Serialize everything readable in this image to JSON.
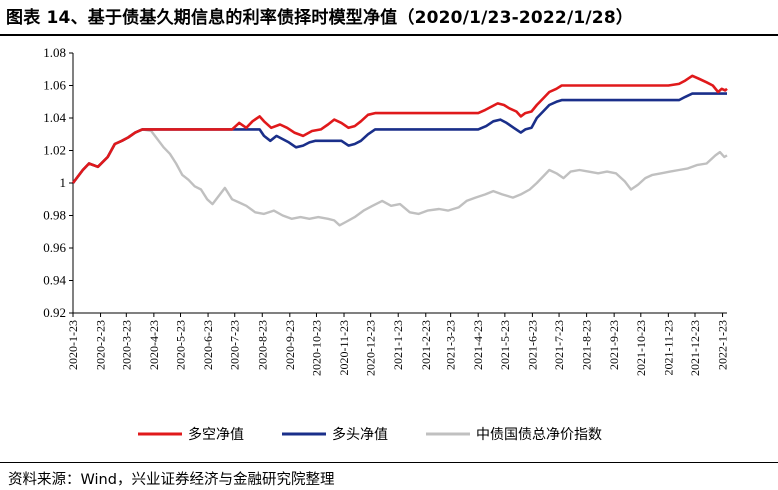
{
  "header": {
    "title": "图表 14、基于债基久期信息的利率债择时模型净值（2020/1/23-2022/1/28）"
  },
  "footer": {
    "source": "资料来源：Wind，兴业证券经济与金融研究院整理"
  },
  "chart_data": {
    "type": "line",
    "title": "图表 14、基于债基久期信息的利率债择时模型净值（2020/1/23-2022/1/28）",
    "ylim": [
      0.92,
      1.08
    ],
    "yticks": [
      "0.92",
      "0.94",
      "0.96",
      "0.98",
      "1",
      "1.02",
      "1.04",
      "1.06",
      "1.08"
    ],
    "xlim": [
      "2020-01-23",
      "2022-01-28"
    ],
    "xticks": [
      "2020-1-23",
      "2020-2-23",
      "2020-3-23",
      "2020-4-23",
      "2020-5-23",
      "2020-6-23",
      "2020-7-23",
      "2020-8-23",
      "2020-9-23",
      "2020-10-23",
      "2020-11-23",
      "2020-12-23",
      "2021-1-23",
      "2021-2-23",
      "2021-3-23",
      "2021-4-23",
      "2021-5-23",
      "2021-6-23",
      "2021-7-23",
      "2021-8-23",
      "2021-9-23",
      "2021-10-23",
      "2021-11-23",
      "2021-12-23",
      "2022-1-23"
    ],
    "legend_position": "bottom",
    "grid": false,
    "series": [
      {
        "name": "多空净值",
        "color": "#e0191b",
        "points": [
          [
            "2020-01-23",
            1.0
          ],
          [
            "2020-02-03",
            1.008
          ],
          [
            "2020-02-10",
            1.012
          ],
          [
            "2020-02-20",
            1.01
          ],
          [
            "2020-03-02",
            1.016
          ],
          [
            "2020-03-10",
            1.024
          ],
          [
            "2020-03-18",
            1.026
          ],
          [
            "2020-03-25",
            1.028
          ],
          [
            "2020-04-02",
            1.031
          ],
          [
            "2020-04-10",
            1.033
          ],
          [
            "2020-04-20",
            1.033
          ],
          [
            "2020-05-20",
            1.033
          ],
          [
            "2020-06-20",
            1.033
          ],
          [
            "2020-07-20",
            1.033
          ],
          [
            "2020-07-28",
            1.037
          ],
          [
            "2020-08-05",
            1.034
          ],
          [
            "2020-08-12",
            1.038
          ],
          [
            "2020-08-20",
            1.041
          ],
          [
            "2020-08-25",
            1.038
          ],
          [
            "2020-09-02",
            1.034
          ],
          [
            "2020-09-12",
            1.036
          ],
          [
            "2020-09-20",
            1.034
          ],
          [
            "2020-09-28",
            1.031
          ],
          [
            "2020-10-08",
            1.029
          ],
          [
            "2020-10-18",
            1.032
          ],
          [
            "2020-10-28",
            1.033
          ],
          [
            "2020-11-05",
            1.036
          ],
          [
            "2020-11-12",
            1.039
          ],
          [
            "2020-11-20",
            1.037
          ],
          [
            "2020-11-28",
            1.034
          ],
          [
            "2020-12-05",
            1.035
          ],
          [
            "2020-12-12",
            1.038
          ],
          [
            "2020-12-20",
            1.042
          ],
          [
            "2020-12-28",
            1.043
          ],
          [
            "2021-02-23",
            1.043
          ],
          [
            "2021-04-23",
            1.043
          ],
          [
            "2021-05-01",
            1.045
          ],
          [
            "2021-05-08",
            1.047
          ],
          [
            "2021-05-15",
            1.049
          ],
          [
            "2021-05-22",
            1.048
          ],
          [
            "2021-05-28",
            1.046
          ],
          [
            "2021-06-05",
            1.044
          ],
          [
            "2021-06-10",
            1.041
          ],
          [
            "2021-06-15",
            1.043
          ],
          [
            "2021-06-22",
            1.044
          ],
          [
            "2021-06-28",
            1.048
          ],
          [
            "2021-07-05",
            1.052
          ],
          [
            "2021-07-12",
            1.056
          ],
          [
            "2021-07-20",
            1.058
          ],
          [
            "2021-07-26",
            1.06
          ],
          [
            "2021-09-23",
            1.06
          ],
          [
            "2021-11-23",
            1.06
          ],
          [
            "2021-12-05",
            1.061
          ],
          [
            "2021-12-12",
            1.063
          ],
          [
            "2021-12-20",
            1.066
          ],
          [
            "2021-12-28",
            1.064
          ],
          [
            "2022-01-05",
            1.062
          ],
          [
            "2022-01-12",
            1.06
          ],
          [
            "2022-01-18",
            1.056
          ],
          [
            "2022-01-22",
            1.058
          ],
          [
            "2022-01-26",
            1.057
          ],
          [
            "2022-01-28",
            1.058
          ]
        ]
      },
      {
        "name": "多头净值",
        "color": "#1a2f8a",
        "points": [
          [
            "2020-01-23",
            1.0
          ],
          [
            "2020-02-03",
            1.008
          ],
          [
            "2020-02-10",
            1.012
          ],
          [
            "2020-02-20",
            1.01
          ],
          [
            "2020-03-02",
            1.016
          ],
          [
            "2020-03-10",
            1.024
          ],
          [
            "2020-03-18",
            1.026
          ],
          [
            "2020-03-25",
            1.028
          ],
          [
            "2020-04-02",
            1.031
          ],
          [
            "2020-04-10",
            1.033
          ],
          [
            "2020-04-20",
            1.033
          ],
          [
            "2020-05-20",
            1.033
          ],
          [
            "2020-06-20",
            1.033
          ],
          [
            "2020-07-20",
            1.033
          ],
          [
            "2020-08-20",
            1.033
          ],
          [
            "2020-08-25",
            1.029
          ],
          [
            "2020-09-01",
            1.026
          ],
          [
            "2020-09-08",
            1.029
          ],
          [
            "2020-09-15",
            1.027
          ],
          [
            "2020-09-22",
            1.025
          ],
          [
            "2020-09-30",
            1.022
          ],
          [
            "2020-10-08",
            1.023
          ],
          [
            "2020-10-15",
            1.025
          ],
          [
            "2020-10-22",
            1.026
          ],
          [
            "2020-11-05",
            1.026
          ],
          [
            "2020-11-20",
            1.026
          ],
          [
            "2020-11-28",
            1.023
          ],
          [
            "2020-12-05",
            1.024
          ],
          [
            "2020-12-12",
            1.026
          ],
          [
            "2020-12-20",
            1.03
          ],
          [
            "2020-12-28",
            1.033
          ],
          [
            "2021-02-23",
            1.033
          ],
          [
            "2021-04-23",
            1.033
          ],
          [
            "2021-05-02",
            1.035
          ],
          [
            "2021-05-10",
            1.038
          ],
          [
            "2021-05-18",
            1.039
          ],
          [
            "2021-05-25",
            1.037
          ],
          [
            "2021-06-02",
            1.034
          ],
          [
            "2021-06-10",
            1.031
          ],
          [
            "2021-06-15",
            1.033
          ],
          [
            "2021-06-22",
            1.034
          ],
          [
            "2021-06-28",
            1.04
          ],
          [
            "2021-07-05",
            1.044
          ],
          [
            "2021-07-12",
            1.048
          ],
          [
            "2021-07-20",
            1.05
          ],
          [
            "2021-07-26",
            1.051
          ],
          [
            "2021-09-23",
            1.051
          ],
          [
            "2021-11-23",
            1.051
          ],
          [
            "2021-12-05",
            1.051
          ],
          [
            "2021-12-12",
            1.053
          ],
          [
            "2021-12-20",
            1.055
          ],
          [
            "2022-01-05",
            1.055
          ],
          [
            "2022-01-28",
            1.055
          ]
        ]
      },
      {
        "name": "中债国债总净价指数",
        "color": "#c0c0c0",
        "points": [
          [
            "2020-01-23",
            1.0
          ],
          [
            "2020-02-03",
            1.008
          ],
          [
            "2020-02-10",
            1.012
          ],
          [
            "2020-02-20",
            1.01
          ],
          [
            "2020-03-02",
            1.016
          ],
          [
            "2020-03-10",
            1.024
          ],
          [
            "2020-03-18",
            1.026
          ],
          [
            "2020-03-25",
            1.028
          ],
          [
            "2020-04-02",
            1.031
          ],
          [
            "2020-04-10",
            1.033
          ],
          [
            "2020-04-20",
            1.032
          ],
          [
            "2020-04-27",
            1.027
          ],
          [
            "2020-05-04",
            1.022
          ],
          [
            "2020-05-11",
            1.018
          ],
          [
            "2020-05-18",
            1.012
          ],
          [
            "2020-05-25",
            1.005
          ],
          [
            "2020-06-01",
            1.002
          ],
          [
            "2020-06-08",
            0.998
          ],
          [
            "2020-06-15",
            0.996
          ],
          [
            "2020-06-22",
            0.99
          ],
          [
            "2020-06-28",
            0.987
          ],
          [
            "2020-07-05",
            0.992
          ],
          [
            "2020-07-12",
            0.997
          ],
          [
            "2020-07-20",
            0.99
          ],
          [
            "2020-07-28",
            0.988
          ],
          [
            "2020-08-05",
            0.986
          ],
          [
            "2020-08-15",
            0.982
          ],
          [
            "2020-08-25",
            0.981
          ],
          [
            "2020-09-05",
            0.983
          ],
          [
            "2020-09-15",
            0.98
          ],
          [
            "2020-09-25",
            0.978
          ],
          [
            "2020-10-05",
            0.979
          ],
          [
            "2020-10-15",
            0.978
          ],
          [
            "2020-10-25",
            0.979
          ],
          [
            "2020-11-05",
            0.978
          ],
          [
            "2020-11-12",
            0.977
          ],
          [
            "2020-11-18",
            0.974
          ],
          [
            "2020-11-25",
            0.976
          ],
          [
            "2020-12-05",
            0.979
          ],
          [
            "2020-12-15",
            0.983
          ],
          [
            "2020-12-25",
            0.986
          ],
          [
            "2021-01-05",
            0.989
          ],
          [
            "2021-01-15",
            0.986
          ],
          [
            "2021-01-25",
            0.987
          ],
          [
            "2021-02-05",
            0.982
          ],
          [
            "2021-02-15",
            0.981
          ],
          [
            "2021-02-25",
            0.983
          ],
          [
            "2021-03-10",
            0.984
          ],
          [
            "2021-03-20",
            0.983
          ],
          [
            "2021-04-01",
            0.985
          ],
          [
            "2021-04-10",
            0.989
          ],
          [
            "2021-04-20",
            0.991
          ],
          [
            "2021-05-01",
            0.993
          ],
          [
            "2021-05-10",
            0.995
          ],
          [
            "2021-05-20",
            0.993
          ],
          [
            "2021-06-01",
            0.991
          ],
          [
            "2021-06-10",
            0.993
          ],
          [
            "2021-06-20",
            0.996
          ],
          [
            "2021-06-28",
            1.0
          ],
          [
            "2021-07-05",
            1.004
          ],
          [
            "2021-07-12",
            1.008
          ],
          [
            "2021-07-20",
            1.006
          ],
          [
            "2021-07-28",
            1.003
          ],
          [
            "2021-08-05",
            1.007
          ],
          [
            "2021-08-15",
            1.008
          ],
          [
            "2021-08-25",
            1.007
          ],
          [
            "2021-09-05",
            1.006
          ],
          [
            "2021-09-15",
            1.007
          ],
          [
            "2021-09-25",
            1.006
          ],
          [
            "2021-10-05",
            1.001
          ],
          [
            "2021-10-12",
            0.996
          ],
          [
            "2021-10-20",
            0.999
          ],
          [
            "2021-10-28",
            1.003
          ],
          [
            "2021-11-05",
            1.005
          ],
          [
            "2021-11-15",
            1.006
          ],
          [
            "2021-11-25",
            1.007
          ],
          [
            "2021-12-05",
            1.008
          ],
          [
            "2021-12-15",
            1.009
          ],
          [
            "2021-12-25",
            1.011
          ],
          [
            "2022-01-05",
            1.012
          ],
          [
            "2022-01-15",
            1.017
          ],
          [
            "2022-01-20",
            1.019
          ],
          [
            "2022-01-25",
            1.016
          ],
          [
            "2022-01-28",
            1.017
          ]
        ]
      }
    ]
  }
}
